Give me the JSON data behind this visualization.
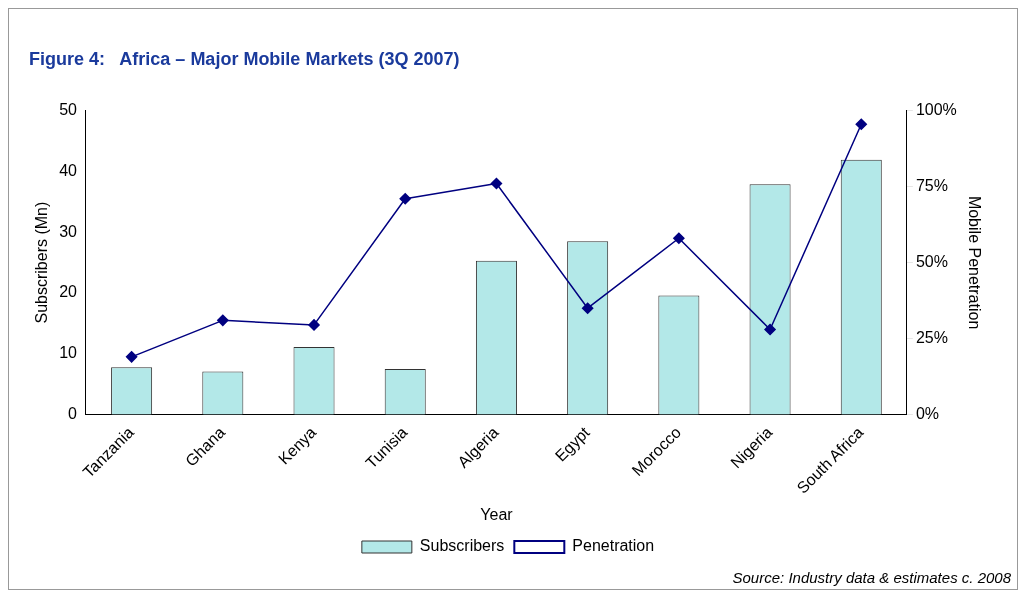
{
  "chart_data": {
    "type": "bar",
    "title": "Figure 4:   Africa – Major Mobile Markets (3Q 2007)",
    "xlabel": "Year",
    "ylabel": "Subscribers (Mn)",
    "y2label": "Mobile Penetration",
    "categories": [
      "Tanzania",
      "Ghana",
      "Kenya",
      "Tunisia",
      "Algeria",
      "Egypt",
      "Morocco",
      "Nigeria",
      "South Africa"
    ],
    "series": [
      {
        "name": "Subscribers",
        "color": "#b3e8e8",
        "values": [
          7.8,
          7.1,
          11.1,
          7.5,
          25.3,
          28.5,
          19.6,
          37.9,
          41.9
        ]
      },
      {
        "name": "Penetration",
        "type": "line",
        "axis": "y2",
        "color": "#000080",
        "marker": "diamond",
        "values": [
          19,
          31,
          29.5,
          71,
          76,
          35,
          58,
          28,
          95.5
        ]
      }
    ],
    "ylim": [
      0,
      50
    ],
    "yticks": [
      0,
      10,
      20,
      30,
      40,
      50
    ],
    "y2lim": [
      0,
      100
    ],
    "y2ticks": [
      {
        "value": 0,
        "label": "0%"
      },
      {
        "value": 25,
        "label": "25%"
      },
      {
        "value": 50,
        "label": "50%"
      },
      {
        "value": 75,
        "label": "75%"
      },
      {
        "value": 100,
        "label": "100%"
      }
    ],
    "grid": false,
    "legend": "bottom",
    "annotations": [
      "Source: Industry data & estimates c. 2008"
    ]
  }
}
